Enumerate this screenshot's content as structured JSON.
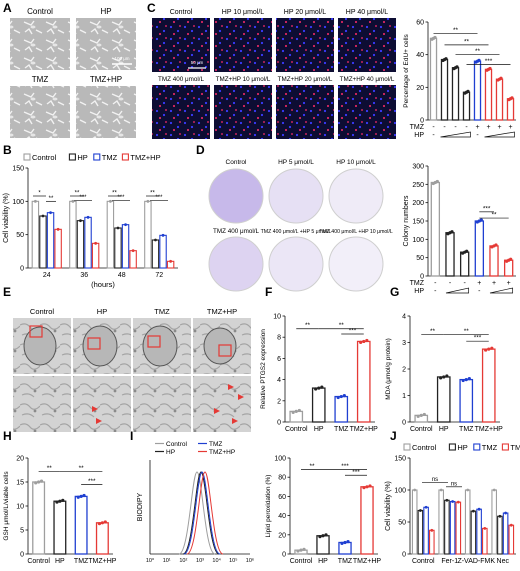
{
  "panels": {
    "A": {
      "letter": "A",
      "labels": [
        "Control",
        "HP",
        "TMZ",
        "TMZ+HP"
      ],
      "scale_bar": "100 μm"
    },
    "B": {
      "letter": "B",
      "chart_data": {
        "type": "bar",
        "ylabel": "Cell viability (%)",
        "xlabel": "(hours)",
        "categories": [
          "24",
          "36",
          "48",
          "72"
        ],
        "ylim": [
          0,
          150
        ],
        "yticks": [
          0,
          50,
          100,
          150
        ],
        "series": [
          {
            "name": "Control",
            "color": "#9e9e9e",
            "values": [
              100,
              100,
              100,
              100
            ]
          },
          {
            "name": "HP",
            "color": "#222222",
            "values": [
              78,
              71,
              60,
              42
            ]
          },
          {
            "name": "TMZ",
            "color": "#1f3fd1",
            "values": [
              83,
              76,
              65,
              49
            ]
          },
          {
            "name": "TMZ+HP",
            "color": "#e53935",
            "values": [
              58,
              37,
              26,
              10
            ]
          }
        ],
        "sig_labels": [
          "*",
          "**",
          "**",
          "***",
          "**",
          "***",
          "**",
          "***"
        ]
      }
    },
    "C": {
      "letter": "C",
      "image_labels": [
        "Control",
        "HP 10 μmol/L",
        "HP 20 μmol/L",
        "HP 40 μmol/L",
        "TMZ 400 μmol/L",
        "TMZ+HP 10 μmol/L",
        "TMZ+HP 20 μmol/L",
        "TMZ+HP 40 μmol/L"
      ],
      "scale_bar": "50 μm",
      "chart_data": {
        "type": "bar",
        "ylabel": "Percentage of EdU+ cells",
        "ylim": [
          0,
          60
        ],
        "yticks": [
          0,
          20,
          40,
          60
        ],
        "values": [
          50,
          37,
          32,
          17,
          36,
          31,
          25,
          13
        ],
        "colors": [
          "#9e9e9e",
          "#222222",
          "#222222",
          "#222222",
          "#1f3fd1",
          "#e53935",
          "#e53935",
          "#e53935"
        ],
        "tmz_row": [
          "-",
          "-",
          "-",
          "-",
          "+",
          "+",
          "+",
          "+"
        ],
        "hp_row": [
          "-",
          "",
          "",
          "",
          "-",
          "",
          "",
          ""
        ],
        "sig_labels": [
          "**",
          "**",
          "**",
          "***"
        ],
        "row_labels": [
          "TMZ",
          "HP"
        ]
      }
    },
    "D": {
      "letter": "D",
      "image_labels": [
        "Control",
        "HP 5 μmol/L",
        "HP 10 μmol/L",
        "TMZ 400 μmol/L",
        "TMZ 400 μmol/L +HP 5 μmol/L",
        "TMZ 400 μmol/L +HP 10 μmol/L"
      ],
      "chart_data": {
        "type": "bar",
        "ylabel": "Colony numbers",
        "ylim": [
          0,
          300
        ],
        "yticks": [
          0,
          50,
          100,
          150,
          200,
          250,
          300
        ],
        "values": [
          255,
          118,
          65,
          150,
          82,
          43
        ],
        "colors": [
          "#9e9e9e",
          "#222222",
          "#222222",
          "#1f3fd1",
          "#e53935",
          "#e53935"
        ],
        "tmz_row": [
          "-",
          "-",
          "-",
          "+",
          "+",
          "+"
        ],
        "hp_row": [
          "-",
          "",
          "",
          "-",
          "",
          ""
        ],
        "sig_labels": [
          "***",
          "**"
        ],
        "row_labels": [
          "TMZ",
          "HP"
        ]
      }
    },
    "E": {
      "letter": "E",
      "labels": [
        "Control",
        "HP",
        "TMZ",
        "TMZ+HP"
      ]
    },
    "F": {
      "letter": "F",
      "chart_data": {
        "type": "bar",
        "ylabel": "Relative PTGS2 expression",
        "categories": [
          "Control",
          "HP",
          "TMZ",
          "TMZ+HP"
        ],
        "ylim": [
          0,
          10
        ],
        "yticks": [
          0,
          2,
          4,
          6,
          8,
          10
        ],
        "values": [
          1,
          3.2,
          2.4,
          7.6
        ],
        "colors": [
          "#9e9e9e",
          "#222222",
          "#1f3fd1",
          "#e53935"
        ],
        "sig_labels": [
          "**",
          "**",
          "***"
        ]
      }
    },
    "G": {
      "letter": "G",
      "chart_data": {
        "type": "bar",
        "ylabel": "MDA (μmol/g protein)",
        "categories": [
          "Control",
          "HP",
          "TMZ",
          "TMZ+HP"
        ],
        "ylim": [
          0,
          4
        ],
        "yticks": [
          0,
          1,
          2,
          3,
          4
        ],
        "values": [
          0.25,
          1.7,
          1.6,
          2.75
        ],
        "colors": [
          "#9e9e9e",
          "#222222",
          "#1f3fd1",
          "#e53935"
        ],
        "sig_labels": [
          "**",
          "**",
          "***"
        ]
      }
    },
    "H": {
      "letter": "H",
      "chart_data": {
        "type": "bar",
        "ylabel": "GSH μmol/L/viable cells",
        "categories": [
          "Control",
          "HP",
          "TMZ",
          "TMZ+HP"
        ],
        "ylim": [
          0,
          20
        ],
        "yticks": [
          0,
          5,
          10,
          15,
          20
        ],
        "values": [
          15,
          11,
          12,
          6.5
        ],
        "colors": [
          "#9e9e9e",
          "#222222",
          "#1f3fd1",
          "#e53935"
        ],
        "sig_labels": [
          "**",
          "**",
          "***"
        ]
      }
    },
    "I": {
      "letter": "I",
      "hist": {
        "ylabel": "BIODIPY",
        "xticks": [
          "10⁰",
          "10¹",
          "10²",
          "10³",
          "10⁴",
          "10⁵",
          "10⁶"
        ],
        "legend": [
          "Control",
          "HP",
          "TMZ",
          "TMZ+HP"
        ],
        "legend_colors": [
          "#9e9e9e",
          "#222222",
          "#1f3fd1",
          "#e53935"
        ]
      },
      "chart_data": {
        "type": "bar",
        "ylabel": "Lipid peroxidation (%)",
        "categories": [
          "Control",
          "HP",
          "TMZ",
          "TMZ+HP"
        ],
        "ylim": [
          0,
          100
        ],
        "yticks": [
          0,
          20,
          40,
          60,
          80,
          100
        ],
        "values": [
          4,
          19,
          12,
          70
        ],
        "colors": [
          "#9e9e9e",
          "#222222",
          "#1f3fd1",
          "#e53935"
        ],
        "sig_labels": [
          "**",
          "***",
          "***"
        ]
      }
    },
    "J": {
      "letter": "J",
      "chart_data": {
        "type": "bar",
        "ylabel": "Cell viability (%)",
        "categories": [
          "Control",
          "Fer-1",
          "Z-VAD-FMK",
          "Nec"
        ],
        "ylim": [
          0,
          150
        ],
        "yticks": [
          0,
          50,
          100,
          150
        ],
        "series": [
          {
            "name": "Control",
            "color": "#9e9e9e",
            "values": [
              100,
              100,
              100,
              100
            ]
          },
          {
            "name": "HP",
            "color": "#222222",
            "values": [
              68,
              84,
              67,
              59
            ]
          },
          {
            "name": "TMZ",
            "color": "#1f3fd1",
            "values": [
              73,
              82,
              70,
              64
            ]
          },
          {
            "name": "TMZ+HP",
            "color": "#e53935",
            "values": [
              37,
              81,
              40,
              45
            ]
          }
        ],
        "sig_labels": [
          "ns",
          "ns"
        ]
      }
    }
  }
}
